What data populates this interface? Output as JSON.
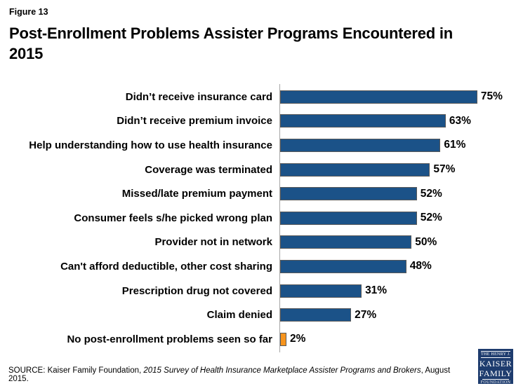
{
  "figure_label": "Figure 13",
  "title": "Post-Enrollment Problems Assister Programs Encountered in 2015",
  "chart_data": {
    "type": "bar",
    "orientation": "horizontal",
    "title": "Post-Enrollment Problems Assister Programs Encountered in 2015",
    "xlabel": "",
    "ylabel": "",
    "xlim": [
      0,
      90
    ],
    "grid": false,
    "legend": "none",
    "value_format": "percent",
    "categories": [
      "Didn’t receive insurance card",
      "Didn’t receive premium invoice",
      "Help understanding how to use health insurance",
      "Coverage was terminated",
      "Missed/late premium payment",
      "Consumer feels s/he picked wrong plan",
      "Provider not in network",
      "Can't afford deductible, other cost sharing",
      "Prescription drug not covered",
      "Claim denied",
      "No post-enrollment problems seen so far"
    ],
    "values": [
      75,
      63,
      61,
      57,
      52,
      52,
      50,
      48,
      31,
      27,
      2
    ],
    "value_labels": [
      "75%",
      "63%",
      "61%",
      "57%",
      "52%",
      "52%",
      "50%",
      "48%",
      "31%",
      "27%",
      "2%"
    ],
    "bar_colors": {
      "default": "#1B5288",
      "highlight": "#F7941D",
      "highlight_index": 10
    },
    "bar_border_color": "#595959",
    "axis_line_color": "#a6a6a6"
  },
  "source": {
    "prefix": "SOURCE: Kaiser Family Foundation, ",
    "italic": "2015 Survey of Health Insurance Marketplace Assister Programs and Brokers",
    "suffix": ", August 2015."
  },
  "logo": {
    "top": "THE HENRY J.",
    "kaiser": "KAISER",
    "family": "FAMILY",
    "bottom": "FOUNDATION",
    "bg_color": "#1E3C6E"
  }
}
